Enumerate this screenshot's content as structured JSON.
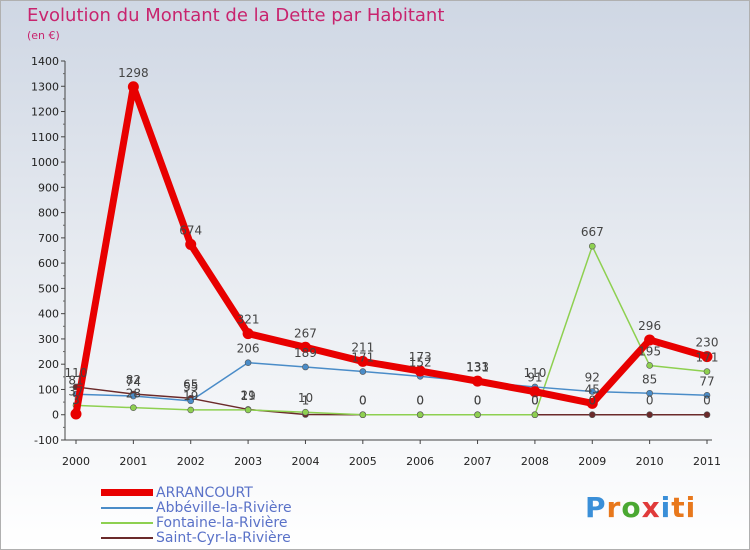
{
  "chart_data": {
    "type": "line",
    "title": "Evolution du Montant de la Dette par Habitant",
    "subtitle": "(en €)",
    "x": [
      "2000",
      "2001",
      "2002",
      "2003",
      "2004",
      "2005",
      "2006",
      "2007",
      "2008",
      "2009",
      "2010",
      "2011"
    ],
    "ylim": [
      -100,
      1400
    ],
    "yticks": [
      -100,
      0,
      100,
      200,
      300,
      400,
      500,
      600,
      700,
      800,
      900,
      1000,
      1100,
      1200,
      1300,
      1400
    ],
    "grid": false,
    "series": [
      {
        "name": "ARRANCOURT",
        "color": "#e80000",
        "values": [
          3,
          1298,
          674,
          321,
          267,
          211,
          173,
          133,
          91,
          45,
          296,
          230
        ],
        "labels": [
          "3",
          "1298",
          "674",
          "321",
          "267",
          "211",
          "173",
          "133",
          "91",
          "45",
          "296",
          "230"
        ]
      },
      {
        "name": "Abbéville-la-Rivière",
        "color": "#4a8cc8",
        "values": [
          81,
          74,
          55,
          206,
          189,
          171,
          152,
          131,
          110,
          92,
          85,
          77
        ],
        "labels": [
          "81",
          "74",
          "55",
          "206",
          "189",
          "171",
          "152",
          "131",
          "110",
          "92",
          "85",
          "77"
        ]
      },
      {
        "name": "Fontaine-la-Rivière",
        "color": "#8ed050",
        "values": [
          37,
          28,
          19,
          19,
          10,
          0,
          0,
          0,
          0,
          667,
          195,
          171
        ],
        "labels": [
          "37",
          "28",
          "19",
          "19",
          "10",
          "0",
          "0",
          "0",
          "0",
          "667",
          "195",
          "171"
        ]
      },
      {
        "name": "Saint-Cyr-la-Rivière",
        "color": "#6b2a2a",
        "values": [
          110,
          82,
          65,
          21,
          1,
          0,
          0,
          0,
          0,
          0,
          0,
          0
        ],
        "labels": [
          "110",
          "82",
          "65",
          "21",
          "1",
          "0",
          "0",
          "0",
          "0",
          "0",
          "0",
          "0"
        ]
      }
    ]
  },
  "legend": {
    "items": [
      {
        "label": "ARRANCOURT",
        "color": "#e80000"
      },
      {
        "label": "Abbéville-la-Rivière",
        "color": "#4a8cc8"
      },
      {
        "label": "Fontaine-la-Rivière",
        "color": "#8ed050"
      },
      {
        "label": "Saint-Cyr-la-Rivière",
        "color": "#6b2a2a"
      }
    ]
  },
  "logo": {
    "letters": [
      "P",
      "r",
      "o",
      "x",
      "i",
      "t",
      "i"
    ],
    "colors": [
      "#3a8fd8",
      "#e8781c",
      "#4aa832",
      "#e03a3a",
      "#3a8fd8",
      "#e8781c",
      "#e8781c"
    ]
  }
}
